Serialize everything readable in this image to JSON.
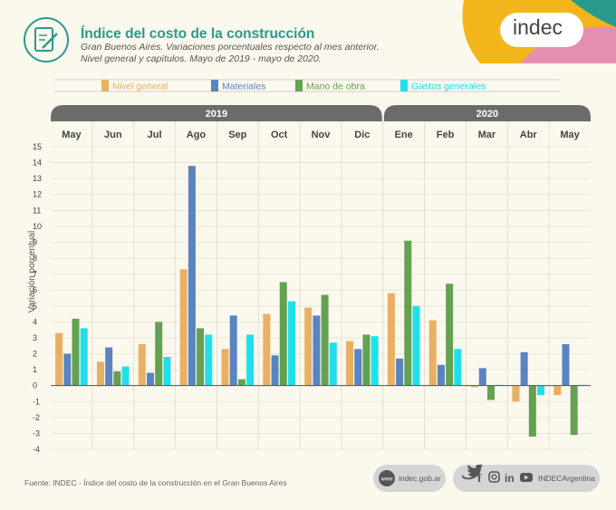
{
  "header": {
    "title": "Índice del costo de la construcción",
    "subtitle_line1": "Gran Buenos Aires. Variaciones porcentuales respecto al mes anterior.",
    "subtitle_line2": "Nivel general y capítulos. Mayo de 2019 - mayo de 2020.",
    "logo": "indec"
  },
  "footer": {
    "source": "Fuente: INDEC - Índice del costo de la construcción en el Gran Buenos Aires",
    "website": "indec.gob.ar",
    "website_badge": "www",
    "social_handle": "INDECArgentina"
  },
  "colors": {
    "nivel": "#e9b063",
    "materiales": "#5a84c0",
    "mano": "#64a153",
    "gastos": "#1fe0ea",
    "year_band": "#6b6b6b",
    "teal": "#2a9a8c",
    "yellow": "#f3b51c",
    "pink": "#e58fb0"
  },
  "chart_data": {
    "type": "bar",
    "title": "Índice del costo de la construcción",
    "ylabel": "Variación porcentual",
    "xlabel": "",
    "ylim": [
      -4,
      15
    ],
    "yticks": [
      -4,
      -3,
      -2,
      -1,
      0,
      1,
      2,
      3,
      4,
      5,
      6,
      7,
      8,
      9,
      10,
      11,
      12,
      13,
      14,
      15
    ],
    "years": [
      {
        "label": "2019",
        "span": [
          0,
          7
        ]
      },
      {
        "label": "2020",
        "span": [
          8,
          12
        ]
      }
    ],
    "categories": [
      "May",
      "Jun",
      "Jul",
      "Ago",
      "Sep",
      "Oct",
      "Nov",
      "Dic",
      "Ene",
      "Feb",
      "Mar",
      "Abr",
      "May"
    ],
    "series": [
      {
        "name": "Nivel general",
        "color": "#e9b063",
        "values": [
          3.3,
          1.5,
          2.6,
          7.3,
          2.3,
          4.5,
          4.9,
          2.8,
          5.8,
          4.1,
          -0.1,
          -1.0,
          -0.6
        ]
      },
      {
        "name": "Materiales",
        "color": "#5a84c0",
        "values": [
          2.0,
          2.4,
          0.8,
          13.8,
          4.4,
          1.9,
          4.4,
          2.3,
          1.7,
          1.3,
          1.1,
          2.1,
          2.6
        ]
      },
      {
        "name": "Mano de obra",
        "color": "#64a153",
        "values": [
          4.2,
          0.9,
          4.0,
          3.6,
          0.4,
          6.5,
          5.7,
          3.2,
          9.1,
          6.4,
          -0.9,
          -3.2,
          -3.1
        ]
      },
      {
        "name": "Gastos generales",
        "color": "#1fe0ea",
        "values": [
          3.6,
          1.2,
          1.8,
          3.2,
          3.2,
          5.3,
          2.7,
          3.1,
          5.0,
          2.3,
          0.05,
          -0.6,
          0.05
        ]
      }
    ],
    "legend_position": "top",
    "grid": true
  }
}
